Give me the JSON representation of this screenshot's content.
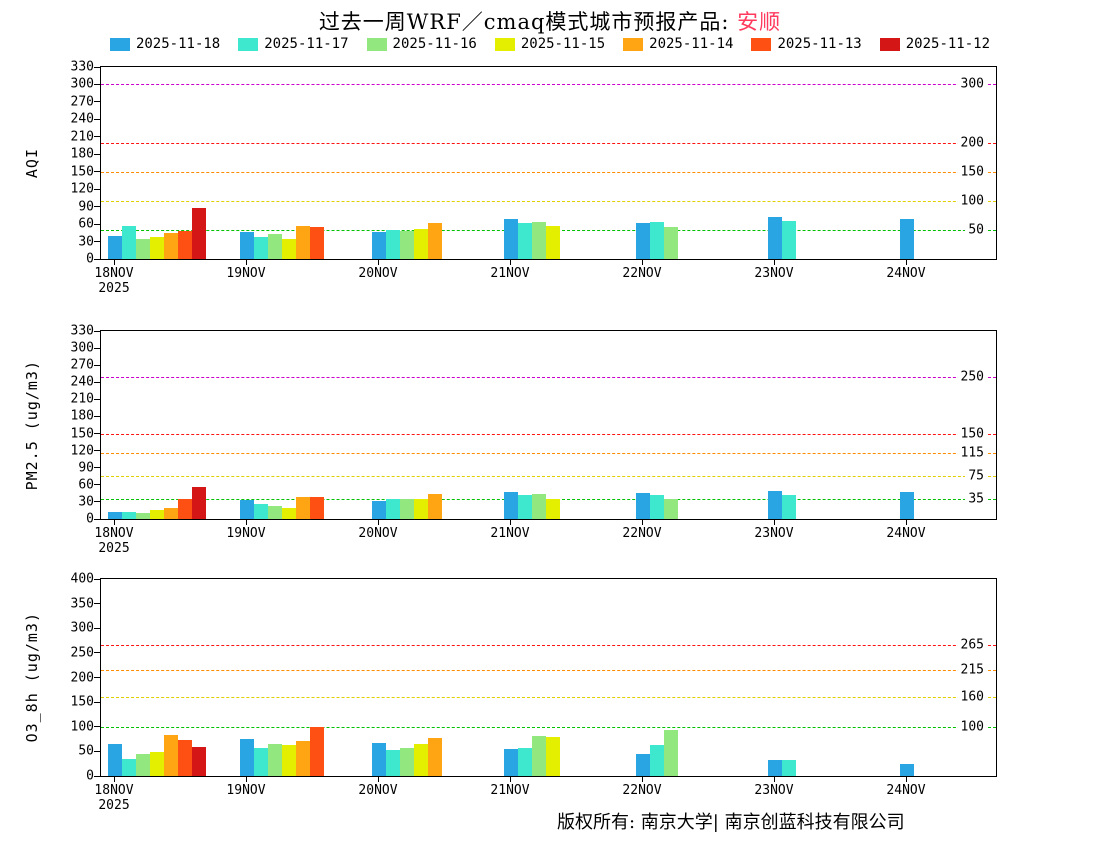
{
  "title": {
    "main": "过去一周WRF／cmaq模式城市预报产品: ",
    "city": "安顺",
    "city_color": "#ff3a5e"
  },
  "legend": {
    "items": [
      {
        "label": "2025-11-18",
        "color": "#29a5e3"
      },
      {
        "label": "2025-11-17",
        "color": "#3de8cf"
      },
      {
        "label": "2025-11-16",
        "color": "#92e87e"
      },
      {
        "label": "2025-11-15",
        "color": "#e4ef00"
      },
      {
        "label": "2025-11-14",
        "color": "#ffa513"
      },
      {
        "label": "2025-11-13",
        "color": "#ff5013"
      },
      {
        "label": "2025-11-12",
        "color": "#d41616"
      }
    ]
  },
  "x_axis": {
    "labels": [
      "18NOV",
      "19NOV",
      "20NOV",
      "21NOV",
      "22NOV",
      "23NOV",
      "24NOV"
    ],
    "year": "2025"
  },
  "footer": {
    "text": "版权所有: 南京大学| 南京创蓝科技有限公司"
  },
  "chart_data": [
    {
      "type": "bar",
      "ylabel": "AQI",
      "ylim": [
        0,
        330
      ],
      "ytick_step": 30,
      "categories": [
        "18NOV",
        "19NOV",
        "20NOV",
        "21NOV",
        "22NOV",
        "23NOV",
        "24NOV"
      ],
      "series_labels": [
        "2025-11-18",
        "2025-11-17",
        "2025-11-16",
        "2025-11-15",
        "2025-11-14",
        "2025-11-13",
        "2025-11-12"
      ],
      "groups": [
        [
          40,
          57,
          35,
          38,
          45,
          48,
          88
        ],
        [
          46,
          38,
          43,
          35,
          57,
          55
        ],
        [
          47,
          50,
          48,
          52,
          62
        ],
        [
          68,
          62,
          64,
          57
        ],
        [
          62,
          63,
          55
        ],
        [
          72,
          65
        ],
        [
          68
        ]
      ],
      "thresholds": [
        {
          "value": 50,
          "color": "#00c000"
        },
        {
          "value": 100,
          "color": "#e0d000"
        },
        {
          "value": 150,
          "color": "#ff8c00"
        },
        {
          "value": 200,
          "color": "#ff1414"
        },
        {
          "value": 300,
          "color": "#cc00cc"
        }
      ]
    },
    {
      "type": "bar",
      "ylabel": "PM2.5 (ug/m3)",
      "ylim": [
        0,
        330
      ],
      "ytick_step": 30,
      "categories": [
        "18NOV",
        "19NOV",
        "20NOV",
        "21NOV",
        "22NOV",
        "23NOV",
        "24NOV"
      ],
      "series_labels": [
        "2025-11-18",
        "2025-11-17",
        "2025-11-16",
        "2025-11-15",
        "2025-11-14",
        "2025-11-13",
        "2025-11-12"
      ],
      "groups": [
        [
          12,
          13,
          11,
          15,
          20,
          35,
          57
        ],
        [
          33,
          27,
          23,
          20,
          38,
          38
        ],
        [
          32,
          35,
          35,
          36,
          44
        ],
        [
          48,
          42,
          44,
          35
        ],
        [
          45,
          42,
          35
        ],
        [
          50,
          43
        ],
        [
          48
        ]
      ],
      "thresholds": [
        {
          "value": 35,
          "color": "#00c000"
        },
        {
          "value": 75,
          "color": "#e0d000"
        },
        {
          "value": 115,
          "color": "#ff8c00"
        },
        {
          "value": 150,
          "color": "#ff1414"
        },
        {
          "value": 250,
          "color": "#cc00cc"
        }
      ]
    },
    {
      "type": "bar",
      "ylabel": "O3_8h (ug/m3)",
      "ylim": [
        0,
        400
      ],
      "ytick_step": 50,
      "categories": [
        "18NOV",
        "19NOV",
        "20NOV",
        "21NOV",
        "22NOV",
        "23NOV",
        "24NOV"
      ],
      "series_labels": [
        "2025-11-18",
        "2025-11-17",
        "2025-11-16",
        "2025-11-15",
        "2025-11-14",
        "2025-11-13",
        "2025-11-12"
      ],
      "groups": [
        [
          65,
          35,
          44,
          48,
          83,
          73,
          58
        ],
        [
          75,
          57,
          64,
          62,
          72,
          100
        ],
        [
          67,
          52,
          57,
          65,
          77
        ],
        [
          55,
          57,
          82,
          80
        ],
        [
          44,
          62,
          93
        ],
        [
          32,
          33
        ],
        [
          25
        ]
      ],
      "thresholds": [
        {
          "value": 100,
          "color": "#00c000"
        },
        {
          "value": 160,
          "color": "#e0d000"
        },
        {
          "value": 215,
          "color": "#ff8c00"
        },
        {
          "value": 265,
          "color": "#ff1414"
        }
      ]
    }
  ]
}
